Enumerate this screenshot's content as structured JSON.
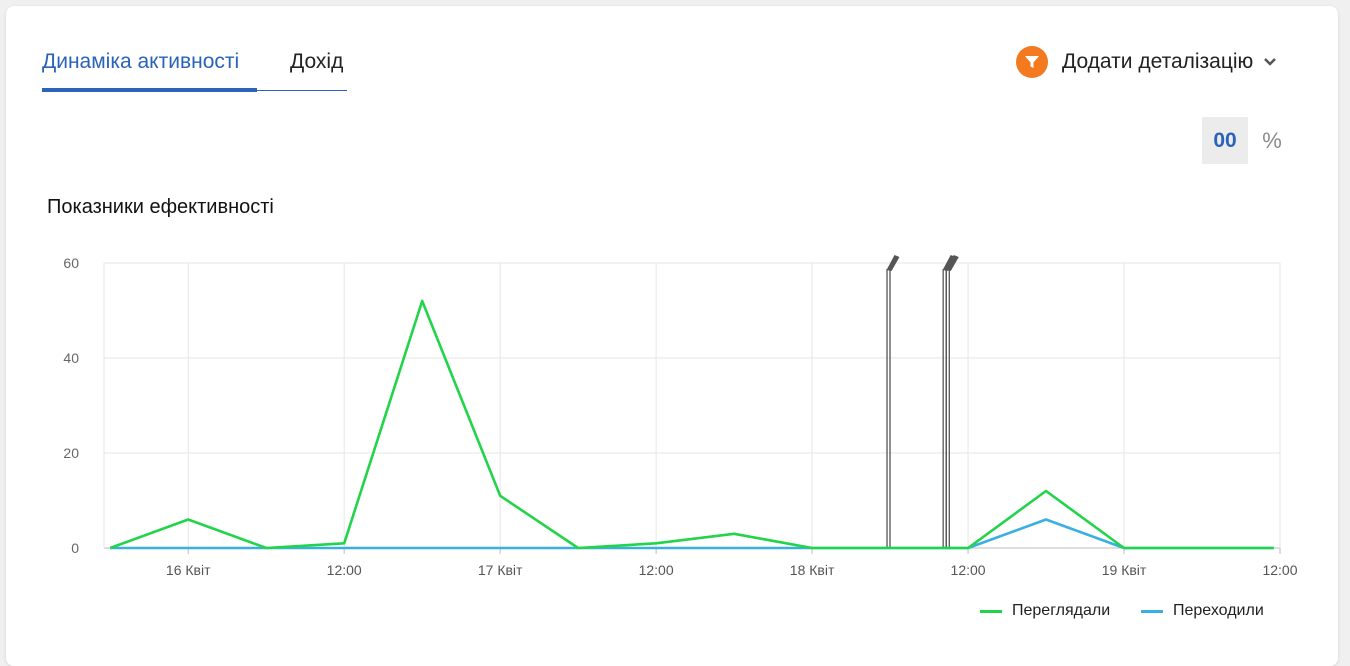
{
  "tabs": [
    {
      "label": "Динаміка активності",
      "active": true
    },
    {
      "label": "Дохід",
      "active": false
    }
  ],
  "detail": {
    "label": "Додати деталізацію",
    "icon": "funnel-icon",
    "dropdown_icon": "chevron-down-icon"
  },
  "toggle": {
    "zero_label": "00",
    "percent_label": "%"
  },
  "colors": {
    "accent": "#2a63b8",
    "funnel": "#f47a20",
    "viewed": "#22d44a",
    "clicked": "#3ab0e0",
    "marker": "#555555"
  },
  "chart_data": {
    "type": "line",
    "title": "Показники ефективності",
    "ylim": [
      0,
      60
    ],
    "y_ticks": [
      0,
      20,
      40,
      60
    ],
    "x_ticks": [
      {
        "label": "16 Квіт",
        "t": 0.2
      },
      {
        "label": "12:00",
        "t": 0.7
      },
      {
        "label": "17 Квіт",
        "t": 1.2
      },
      {
        "label": "12:00",
        "t": 1.7
      },
      {
        "label": "18 Квіт",
        "t": 2.2
      },
      {
        "label": "12:00",
        "t": 2.7
      },
      {
        "label": "19 Квіт",
        "t": 3.2
      },
      {
        "label": "12:00",
        "t": 3.7
      }
    ],
    "xlim": [
      -0.07,
      3.7
    ],
    "series": [
      {
        "name": "Переглядали",
        "points": [
          [
            -0.05,
            0
          ],
          [
            0.2,
            6
          ],
          [
            0.45,
            0
          ],
          [
            0.7,
            1
          ],
          [
            0.95,
            52
          ],
          [
            1.2,
            11
          ],
          [
            1.45,
            0
          ],
          [
            1.7,
            1
          ],
          [
            1.95,
            3
          ],
          [
            2.2,
            0
          ],
          [
            2.45,
            0
          ],
          [
            2.7,
            0
          ],
          [
            2.95,
            12
          ],
          [
            3.2,
            0
          ],
          [
            3.45,
            0
          ],
          [
            3.68,
            0
          ]
        ]
      },
      {
        "name": "Переходили",
        "points": [
          [
            -0.05,
            0
          ],
          [
            0.2,
            0
          ],
          [
            0.45,
            0
          ],
          [
            0.7,
            0
          ],
          [
            0.95,
            0
          ],
          [
            1.2,
            0
          ],
          [
            1.45,
            0
          ],
          [
            1.7,
            0
          ],
          [
            1.95,
            0
          ],
          [
            2.2,
            0
          ],
          [
            2.45,
            0
          ],
          [
            2.7,
            0
          ],
          [
            2.95,
            6
          ],
          [
            3.2,
            0
          ],
          [
            3.45,
            0
          ],
          [
            3.68,
            0
          ]
        ]
      }
    ],
    "markers": [
      2.445,
      2.625,
      2.635
    ],
    "legend_position": "bottom-right",
    "grid": true
  }
}
